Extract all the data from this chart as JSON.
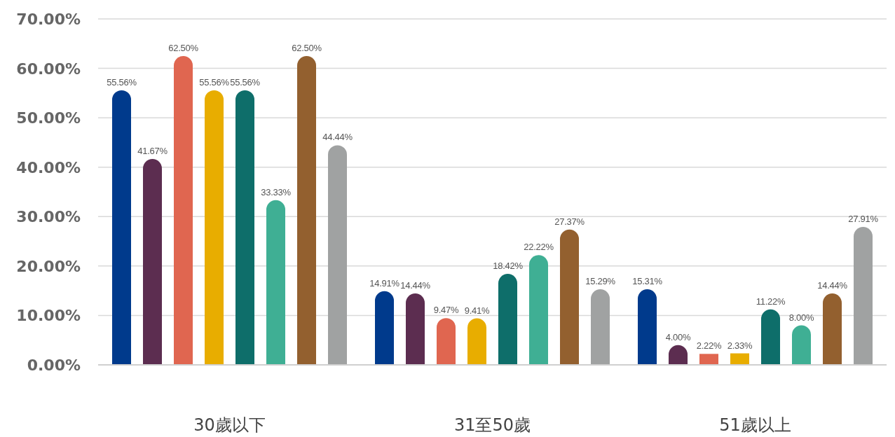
{
  "chart_data": {
    "type": "bar",
    "categories": [
      "30歲以下",
      "31至50歲",
      "51歲以上"
    ],
    "ylim": [
      0,
      70
    ],
    "yticks": [
      {
        "value": 0,
        "label": "0.00%"
      },
      {
        "value": 10,
        "label": "10.00%"
      },
      {
        "value": 20,
        "label": "20.00%"
      },
      {
        "value": 30,
        "label": "30.00%"
      },
      {
        "value": 40,
        "label": "40.00%"
      },
      {
        "value": 50,
        "label": "50.00%"
      },
      {
        "value": 60,
        "label": "60.00%"
      },
      {
        "value": 70,
        "label": "70.00%"
      }
    ],
    "grid": "y",
    "series": [
      {
        "color": "#003a8c",
        "values": [
          55.56,
          14.91,
          15.31
        ],
        "value_labels": [
          "55.56%",
          "14.91%",
          "15.31%"
        ]
      },
      {
        "color": "#5c2d50",
        "values": [
          41.67,
          14.44,
          4.0
        ],
        "value_labels": [
          "41.67%",
          "14.44%",
          "4.00%"
        ]
      },
      {
        "color": "#e06650",
        "values": [
          62.5,
          9.47,
          2.22
        ],
        "value_labels": [
          "62.50%",
          "9.47%",
          "2.22%"
        ]
      },
      {
        "color": "#e8ad00",
        "values": [
          55.56,
          9.41,
          2.33
        ],
        "value_labels": [
          "55.56%",
          "9.41%",
          "2.33%"
        ]
      },
      {
        "color": "#0e6e6a",
        "values": [
          55.56,
          18.42,
          11.22
        ],
        "value_labels": [
          "55.56%",
          "18.42%",
          "11.22%"
        ]
      },
      {
        "color": "#3faf94",
        "values": [
          33.33,
          22.22,
          8.0
        ],
        "value_labels": [
          "33.33%",
          "22.22%",
          "8.00%"
        ]
      },
      {
        "color": "#93602f",
        "values": [
          62.5,
          27.37,
          14.44
        ],
        "value_labels": [
          "62.50%",
          "27.37%",
          "14.44%"
        ]
      },
      {
        "color": "#a0a2a2",
        "values": [
          44.44,
          15.29,
          27.91
        ],
        "value_labels": [
          "44.44%",
          "15.29%",
          "27.91%"
        ]
      }
    ]
  }
}
